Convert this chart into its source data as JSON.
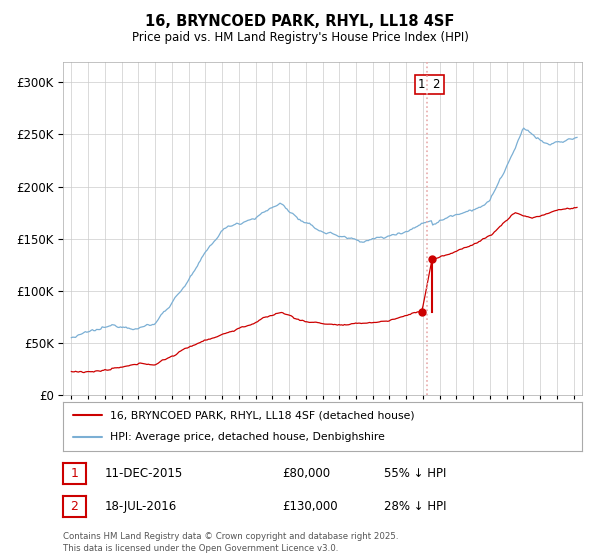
{
  "title": "16, BRYNCOED PARK, RHYL, LL18 4SF",
  "subtitle": "Price paid vs. HM Land Registry's House Price Index (HPI)",
  "background_color": "#ffffff",
  "grid_color": "#cccccc",
  "hpi_color": "#7bafd4",
  "price_color": "#cc0000",
  "dashed_line_color": "#e88888",
  "legend_label_price": "16, BRYNCOED PARK, RHYL, LL18 4SF (detached house)",
  "legend_label_hpi": "HPI: Average price, detached house, Denbighshire",
  "transaction1_date": 2015.95,
  "transaction1_price": 80000,
  "transaction2_date": 2016.54,
  "transaction2_price": 130000,
  "table_row1": [
    "1",
    "11-DEC-2015",
    "£80,000",
    "55% ↓ HPI"
  ],
  "table_row2": [
    "2",
    "18-JUL-2016",
    "£130,000",
    "28% ↓ HPI"
  ],
  "footnote": "Contains HM Land Registry data © Crown copyright and database right 2025.\nThis data is licensed under the Open Government Licence v3.0.",
  "ylim": [
    0,
    320000
  ],
  "xlim_start": 1994.5,
  "xlim_end": 2025.5,
  "vline_x": 2016.25
}
